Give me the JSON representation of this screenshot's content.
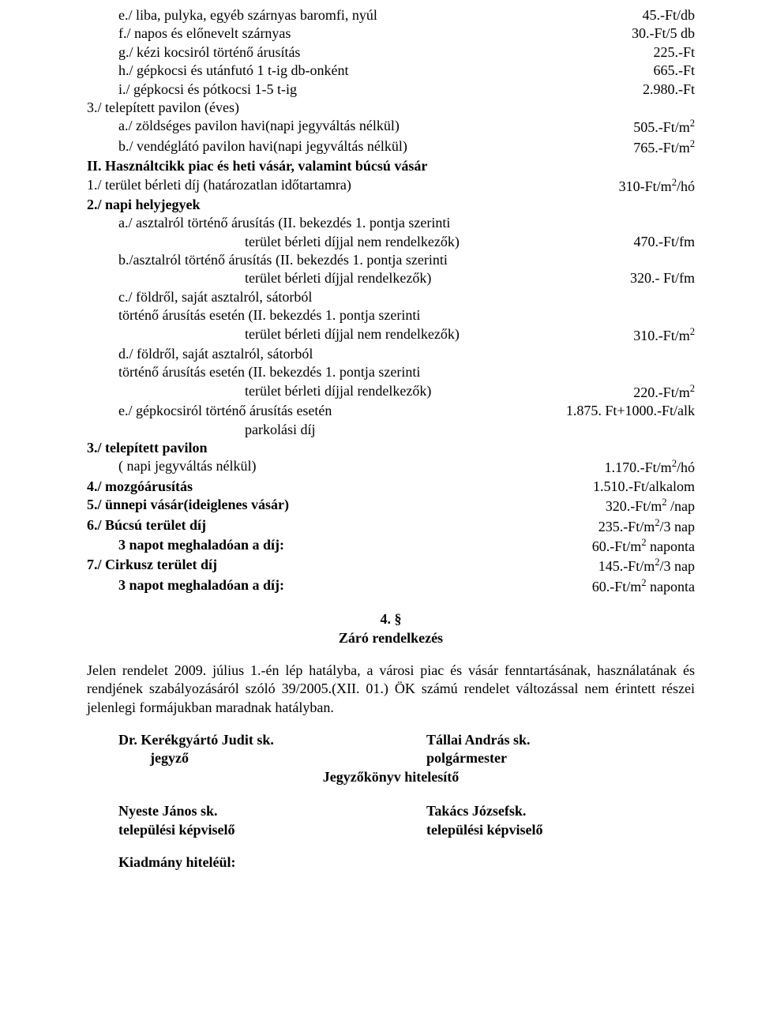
{
  "items": {
    "e": {
      "label": "e./ liba, pulyka, egyéb szárnyas baromfi, nyúl",
      "price": "45.-Ft/db"
    },
    "f": {
      "label": "f./ napos és előnevelt szárnyas",
      "price": "30.-Ft/5 db"
    },
    "g": {
      "label": "g./ kézi kocsiról történő árusítás",
      "price": "225.-Ft"
    },
    "h": {
      "label": "h./ gépkocsi és utánfutó 1 t-ig db-onként",
      "price": "665.-Ft"
    },
    "i": {
      "label": "i./ gépkocsi és pótkocsi 1-5 t-ig",
      "price": "2.980.-Ft"
    }
  },
  "pavilon_eves": {
    "header": "3./ telepített pavilon (éves)",
    "a": {
      "label": "a./ zöldséges pavilon havi(napi jegyváltás nélkül)",
      "price": "505.-Ft/m",
      "sup": "2"
    },
    "b": {
      "label": "b./ vendéglátó pavilon havi(napi jegyváltás nélkül)",
      "price": "765.-Ft/m",
      "sup": "2"
    }
  },
  "sectionII": {
    "title": "II. Használtcikk piac és heti vásár, valamint búcsú vásár",
    "item1": {
      "label": "1./ terület bérleti díj    (határozatlan időtartamra)",
      "price": "310-Ft/m",
      "sup": "2",
      "suffix": "/hó"
    },
    "item2_header": "2./ napi helyjegyek",
    "a": {
      "l1": "a./ asztalról történő árusítás (II. bekezdés 1. pontja szerinti",
      "l2": "terület bérleti díjjal nem rendelkezők)",
      "price": "470.-Ft/fm"
    },
    "b": {
      "l1": "b./asztalról történő árusítás (II. bekezdés 1. pontja szerinti",
      "l2": "terület bérleti díjjal rendelkezők)",
      "price": "320.- Ft/fm"
    },
    "c": {
      "l1": "c./ földről, saját asztalról, sátorból",
      "l2": "történő árusítás esetén (II. bekezdés 1. pontja szerinti",
      "l3": "terület bérleti díjjal nem rendelkezők)",
      "price": "310.-Ft/m",
      "sup": "2"
    },
    "d": {
      "l1": "d./ földről, saját asztalról, sátorból",
      "l2": "történő árusítás esetén (II. bekezdés 1. pontja szerinti",
      "l3": "terület bérleti díjjal rendelkezők)",
      "price": "220.-Ft/m",
      "sup": "2"
    },
    "e": {
      "l1": "e./ gépkocsiról történő árusítás esetén",
      "l2": "parkolási díj",
      "price": "1.875. Ft+1000.-Ft/alk"
    },
    "item3": {
      "header": "3./ telepített pavilon",
      "sub": "( napi jegyváltás nélkül)",
      "price": "1.170.-Ft/m",
      "sup": "2",
      "suffix": "/hó"
    },
    "item4": {
      "label": "4./ mozgóárusítás",
      "price": "1.510.-Ft/alkalom"
    },
    "item5": {
      "label": "5./ ünnepi vásár(ideiglenes vásár)",
      "price": "320.-Ft/m",
      "sup": "2",
      "suffix": " /nap"
    },
    "item6": {
      "label": "6./ Búcsú terület díj",
      "price": "235.-Ft/m",
      "sup": "2",
      "suffix": "/3 nap"
    },
    "item6b": {
      "label": "3 napot meghaladóan a díj:",
      "price": "60.-Ft/m",
      "sup": "2",
      "suffix": " naponta"
    },
    "item7": {
      "label": "7./ Cirkusz terület díj",
      "price": "145.-Ft/m",
      "sup": "2",
      "suffix": "/3 nap"
    },
    "item7b": {
      "label": "3 napot meghaladóan a díj:",
      "price": " 60.-Ft/m",
      "sup": "2",
      "suffix": " naponta"
    }
  },
  "closing": {
    "section_num": "4. §",
    "section_title": "Záró rendelkezés",
    "paragraph": "Jelen rendelet 2009. július 1.-én lép hatályba, a városi piac és vásár fenntartásának, használatának és rendjének szabályozásáról szóló 39/2005.(XII. 01.) ÖK  számú rendelet változással nem érintett részei jelenlegi formájukban maradnak hatályban."
  },
  "signatures": {
    "left1": "Dr. Kerékgyártó Judit sk.",
    "left1b": "jegyző",
    "right1": "Tállai András sk.",
    "right1b": "polgármester",
    "mid": "Jegyzőkönyv hitelesítő",
    "left2": "Nyeste János sk.",
    "left2b": "települési képviselő",
    "right2": "Takács Józsefsk.",
    "right2b": "települési képviselő",
    "bottom": "Kiadmány hiteléül:"
  }
}
